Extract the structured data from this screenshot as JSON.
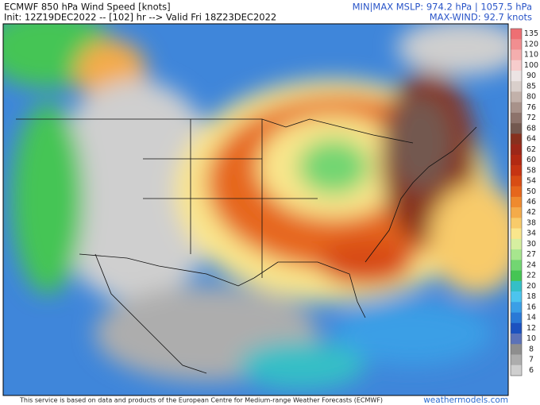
{
  "header": {
    "title": "ECMWF 850 hPa Wind Speed [knots]",
    "subtitle": "Init: 12Z19DEC2022 -- [102] hr --> Valid Fri 18Z23DEC2022",
    "mslp": "MIN|MAX MSLP: 974.2 hPa | 1057.5 hPa",
    "max_wind": "MAX-WIND: 92.7 knots"
  },
  "legend": {
    "levels": [
      135,
      120,
      110,
      100,
      90,
      85,
      80,
      76,
      72,
      68,
      64,
      62,
      60,
      58,
      54,
      50,
      46,
      42,
      38,
      34,
      30,
      27,
      24,
      22,
      20,
      18,
      16,
      14,
      12,
      10,
      8,
      7,
      6
    ],
    "colors": [
      "#ee6f73",
      "#f18e90",
      "#f4aeae",
      "#f7cccc",
      "#ece4e4",
      "#d9cfcb",
      "#c2b1aa",
      "#a8928a",
      "#8d736b",
      "#73584f",
      "#87301e",
      "#9c2718",
      "#b22912",
      "#c63412",
      "#d84c14",
      "#e6661c",
      "#ef8a2e",
      "#f4ab4a",
      "#f8cb6a",
      "#fae68c",
      "#d6efa0",
      "#a7e68e",
      "#72d672",
      "#45c554",
      "#34bfc6",
      "#4cc4ee",
      "#3a9fe6",
      "#2a79d6",
      "#1c52bf",
      "#5b72b8",
      "#8e8e8e",
      "#adadad",
      "#cfcfcf"
    ]
  },
  "footer": {
    "credit": "This service is based on data and products of the European Centre for Medium-range Weather Forecasts (ECMWF)",
    "brand": "weathermodels.com"
  }
}
